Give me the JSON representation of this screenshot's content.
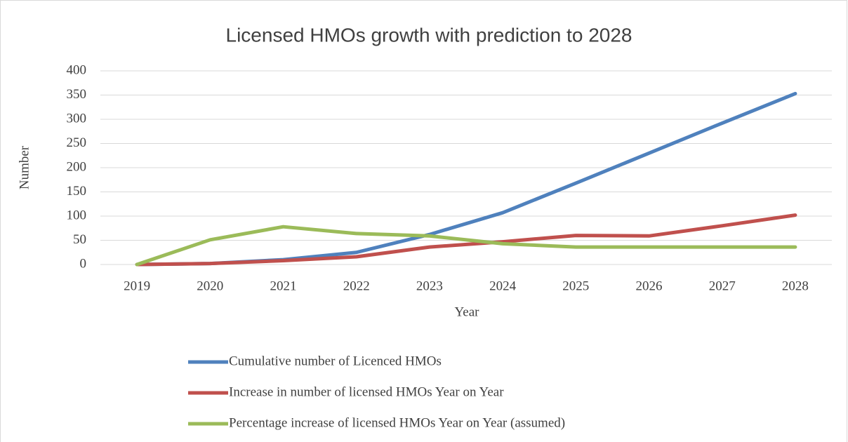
{
  "chart_data": {
    "type": "line",
    "title": "Licensed HMOs growth with prediction to 2028",
    "x_label": "Year",
    "y_label": "Number",
    "categories": [
      "2019",
      "2020",
      "2021",
      "2022",
      "2023",
      "2024",
      "2025",
      "2026",
      "2027",
      "2028"
    ],
    "series": [
      {
        "name": "Cumulative number of Licenced HMOs",
        "color": "#4f81bd",
        "values": [
          0,
          2,
          10,
          25,
          62,
          107,
          168,
          230,
          292,
          353
        ]
      },
      {
        "name": "Increase in number of licensed HMOs Year on Year",
        "color": "#c0504d",
        "values": [
          0,
          2,
          8,
          16,
          36,
          47,
          60,
          59,
          80,
          102
        ]
      },
      {
        "name": "Percentage increase of licensed HMOs Year on Year (assumed)",
        "color": "#9bbb59",
        "values": [
          0,
          51,
          78,
          64,
          59,
          43,
          36,
          36,
          36,
          36
        ]
      }
    ],
    "ylim": [
      0,
      400
    ],
    "yticks": [
      0,
      50,
      100,
      150,
      200,
      250,
      300,
      350,
      400
    ],
    "grid": true,
    "legend": "bottom"
  }
}
